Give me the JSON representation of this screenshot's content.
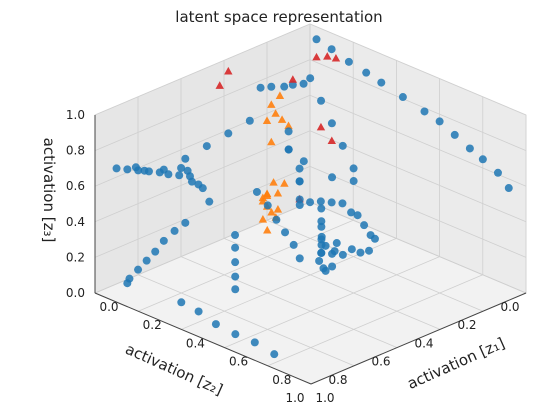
{
  "chart_data": {
    "type": "scatter",
    "projection": "3d",
    "title": "latent space representation",
    "xlabel": "activation [z₁]",
    "ylabel": "activation [z₂]",
    "zlabel": "activation [z₃]",
    "xlim": [
      0,
      1
    ],
    "ylim": [
      0,
      1
    ],
    "zlim": [
      0,
      1
    ],
    "xticks": [
      "0.0",
      "0.2",
      "0.4",
      "0.6",
      "0.8",
      "1.0"
    ],
    "yticks": [
      "0.0",
      "0.2",
      "0.4",
      "0.6",
      "0.8",
      "1.0"
    ],
    "zticks": [
      "0.0",
      "0.2",
      "0.4",
      "0.6",
      "0.8",
      "1.0"
    ],
    "grid": true,
    "colors": {
      "blue": "#1f77b4",
      "orange": "#ff7f0e",
      "red": "#d62728"
    },
    "series": [
      {
        "marker": "circle",
        "color": "#1f77b4",
        "points": [
          [
            0.05,
            0.02,
            0.95
          ],
          [
            0.12,
            0.02,
            0.93
          ],
          [
            0.2,
            0.02,
            0.9
          ],
          [
            0.28,
            0.02,
            0.88
          ],
          [
            0.35,
            0.02,
            0.86
          ],
          [
            0.45,
            0.02,
            0.83
          ],
          [
            0.55,
            0.02,
            0.8
          ],
          [
            0.62,
            0.02,
            0.78
          ],
          [
            0.7,
            0.03,
            0.75
          ],
          [
            0.78,
            0.04,
            0.72
          ],
          [
            0.85,
            0.05,
            0.7
          ],
          [
            0.92,
            0.05,
            0.66
          ],
          [
            0.97,
            0.05,
            0.6
          ],
          [
            0.05,
            0.95,
            0.7
          ],
          [
            0.1,
            0.95,
            0.72
          ],
          [
            0.15,
            0.95,
            0.74
          ],
          [
            0.2,
            0.95,
            0.76
          ],
          [
            0.25,
            0.95,
            0.78
          ],
          [
            0.3,
            0.96,
            0.8
          ],
          [
            0.35,
            0.96,
            0.82
          ],
          [
            0.4,
            0.96,
            0.84
          ],
          [
            0.95,
            0.9,
            0.75
          ],
          [
            0.97,
            0.85,
            0.7
          ],
          [
            0.99,
            0.8,
            0.65
          ],
          [
            0.98,
            0.75,
            0.6
          ],
          [
            0.97,
            0.7,
            0.58
          ],
          [
            0.99,
            0.88,
            0.68
          ],
          [
            0.02,
            0.3,
            0.62
          ],
          [
            0.02,
            0.4,
            0.6
          ],
          [
            0.02,
            0.5,
            0.58
          ],
          [
            0.02,
            0.6,
            0.56
          ],
          [
            0.02,
            0.7,
            0.55
          ],
          [
            0.03,
            0.8,
            0.6
          ],
          [
            0.04,
            0.85,
            0.65
          ],
          [
            0.1,
            0.7,
            0.6
          ],
          [
            0.15,
            0.72,
            0.62
          ],
          [
            0.2,
            0.75,
            0.6
          ],
          [
            0.25,
            0.77,
            0.62
          ],
          [
            0.3,
            0.8,
            0.64
          ],
          [
            0.35,
            0.82,
            0.6
          ],
          [
            0.2,
            0.2,
            0.9
          ],
          [
            0.3,
            0.25,
            0.85
          ],
          [
            0.4,
            0.3,
            0.8
          ],
          [
            0.5,
            0.35,
            0.75
          ],
          [
            0.6,
            0.4,
            0.7
          ],
          [
            0.55,
            0.45,
            0.65
          ],
          [
            0.65,
            0.45,
            0.68
          ],
          [
            0.02,
            0.05,
            0.7
          ],
          [
            0.02,
            0.1,
            0.72
          ],
          [
            0.03,
            0.15,
            0.74
          ],
          [
            0.02,
            0.2,
            0.76
          ],
          [
            0.02,
            0.25,
            0.78
          ],
          [
            0.7,
            0.95,
            0.9
          ],
          [
            0.75,
            0.95,
            0.85
          ],
          [
            0.8,
            0.96,
            0.8
          ],
          [
            0.85,
            0.97,
            0.76
          ],
          [
            0.9,
            0.98,
            0.72
          ],
          [
            0.05,
            0.05,
            0.05
          ],
          [
            0.1,
            0.05,
            0.08
          ],
          [
            0.15,
            0.05,
            0.1
          ],
          [
            0.2,
            0.05,
            0.12
          ],
          [
            0.25,
            0.06,
            0.1
          ],
          [
            0.3,
            0.08,
            0.12
          ],
          [
            0.35,
            0.1,
            0.1
          ],
          [
            0.4,
            0.12,
            0.08
          ],
          [
            0.45,
            0.15,
            0.1
          ],
          [
            0.1,
            0.2,
            0.55
          ],
          [
            0.15,
            0.25,
            0.5
          ],
          [
            0.2,
            0.3,
            0.55
          ],
          [
            0.25,
            0.28,
            0.5
          ],
          [
            0.3,
            0.35,
            0.52
          ],
          [
            0.35,
            0.4,
            0.5
          ],
          [
            0.4,
            0.45,
            0.55
          ],
          [
            0.45,
            0.5,
            0.5
          ],
          [
            0.5,
            0.55,
            0.52
          ],
          [
            0.55,
            0.5,
            0.5
          ],
          [
            0.6,
            0.55,
            0.48
          ],
          [
            0.65,
            0.6,
            0.5
          ],
          [
            0.7,
            0.65,
            0.48
          ],
          [
            0.75,
            0.7,
            0.5
          ],
          [
            0.02,
            0.6,
            0.2
          ],
          [
            0.02,
            0.65,
            0.18
          ],
          [
            0.02,
            0.7,
            0.15
          ],
          [
            0.03,
            0.75,
            0.12
          ],
          [
            0.04,
            0.8,
            0.1
          ],
          [
            0.05,
            0.85,
            0.08
          ],
          [
            0.06,
            0.9,
            0.06
          ],
          [
            0.07,
            0.92,
            0.05
          ],
          [
            0.3,
            0.65,
            0.3
          ],
          [
            0.35,
            0.7,
            0.28
          ],
          [
            0.4,
            0.75,
            0.25
          ],
          [
            0.45,
            0.8,
            0.22
          ],
          [
            0.5,
            0.85,
            0.2
          ],
          [
            0.3,
            0.9,
            0.05
          ],
          [
            0.4,
            0.92,
            0.06
          ],
          [
            0.5,
            0.94,
            0.05
          ],
          [
            0.6,
            0.95,
            0.05
          ],
          [
            0.7,
            0.96,
            0.06
          ],
          [
            0.8,
            0.97,
            0.05
          ],
          [
            0.5,
            0.45,
            0.2
          ],
          [
            0.55,
            0.45,
            0.22
          ],
          [
            0.6,
            0.5,
            0.2
          ],
          [
            0.55,
            0.5,
            0.25
          ],
          [
            0.5,
            0.55,
            0.22
          ],
          [
            0.6,
            0.45,
            0.24
          ],
          [
            0.52,
            0.48,
            0.18
          ],
          [
            0.58,
            0.52,
            0.19
          ],
          [
            0.54,
            0.47,
            0.27
          ],
          [
            0.57,
            0.5,
            0.16
          ]
        ]
      },
      {
        "marker": "triangle",
        "color": "#ff7f0e",
        "points": [
          [
            0.05,
            0.25,
            0.2
          ],
          [
            0.08,
            0.28,
            0.22
          ],
          [
            0.1,
            0.3,
            0.25
          ],
          [
            0.12,
            0.32,
            0.2
          ],
          [
            0.1,
            0.27,
            0.3
          ],
          [
            0.15,
            0.3,
            0.28
          ],
          [
            0.13,
            0.35,
            0.25
          ],
          [
            0.18,
            0.33,
            0.22
          ],
          [
            0.2,
            0.36,
            0.2
          ],
          [
            0.16,
            0.38,
            0.3
          ],
          [
            0.22,
            0.4,
            0.26
          ],
          [
            0.2,
            0.42,
            0.22
          ],
          [
            0.25,
            0.45,
            0.2
          ],
          [
            0.18,
            0.3,
            0.35
          ],
          [
            0.02,
            0.15,
            0.55
          ],
          [
            0.02,
            0.18,
            0.6
          ],
          [
            0.02,
            0.2,
            0.66
          ],
          [
            0.03,
            0.17,
            0.7
          ],
          [
            0.02,
            0.22,
            0.58
          ],
          [
            0.02,
            0.12,
            0.5
          ],
          [
            0.02,
            0.2,
            0.45
          ]
        ]
      },
      {
        "marker": "triangle",
        "color": "#d62728",
        "points": [
          [
            0.05,
            0.02,
            0.85
          ],
          [
            0.1,
            0.02,
            0.88
          ],
          [
            0.15,
            0.03,
            0.9
          ],
          [
            0.02,
            0.4,
            0.95
          ],
          [
            0.03,
            0.45,
            0.9
          ],
          [
            0.02,
            0.1,
            0.75
          ],
          [
            0.35,
            0.4,
            0.4
          ],
          [
            0.3,
            0.2,
            0.6
          ],
          [
            0.2,
            0.15,
            0.6
          ]
        ]
      }
    ]
  }
}
